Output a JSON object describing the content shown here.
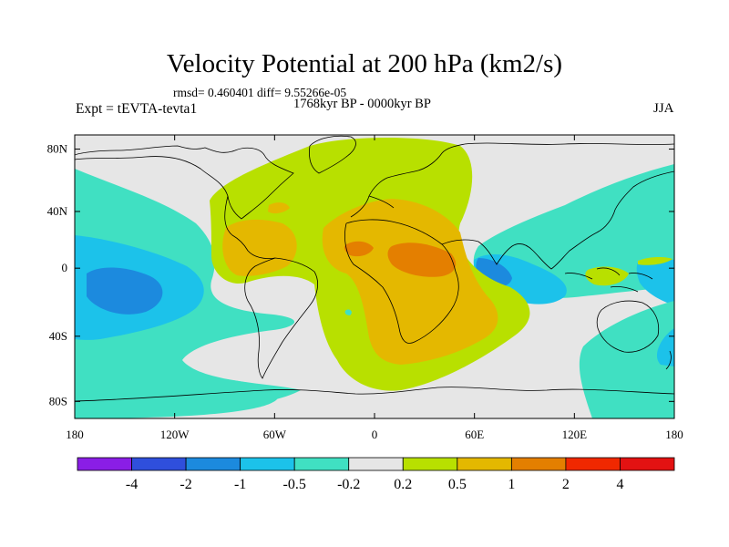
{
  "title": "Velocity Potential at 200 hPa (km2/s)",
  "stats": "rmsd= 0.460401 diff= 9.55266e-05",
  "left_label": "Expt = tEVTA-tevta1",
  "center_label": "1768kyr BP - 0000kyr BP",
  "right_label": "JJA",
  "lat_ticks": [
    "80N",
    "40N",
    "0",
    "40S",
    "80S"
  ],
  "lon_ticks": [
    "180",
    "120W",
    "60W",
    "0",
    "60E",
    "120E",
    "180"
  ],
  "colorbar": {
    "labels": [
      "-4",
      "-2",
      "-1",
      "-0.5",
      "-0.2",
      "0.2",
      "0.5",
      "1",
      "2",
      "4"
    ],
    "colors": [
      "#8a1ee6",
      "#2f4fdc",
      "#1c8ade",
      "#1cc2ea",
      "#40e0c2",
      "#e6e6e6",
      "#b8e000",
      "#e4b800",
      "#e47f00",
      "#f02800",
      "#e31212"
    ]
  },
  "fields": {
    "neutral": "#e6e6e6",
    "cyan": "#40e0c2",
    "lightblue": "#1cc2ea",
    "blue": "#1c8ade",
    "darkblue": "#2f4fdc",
    "lime": "#b8e000",
    "gold": "#e4b800",
    "orange": "#e47f00"
  }
}
